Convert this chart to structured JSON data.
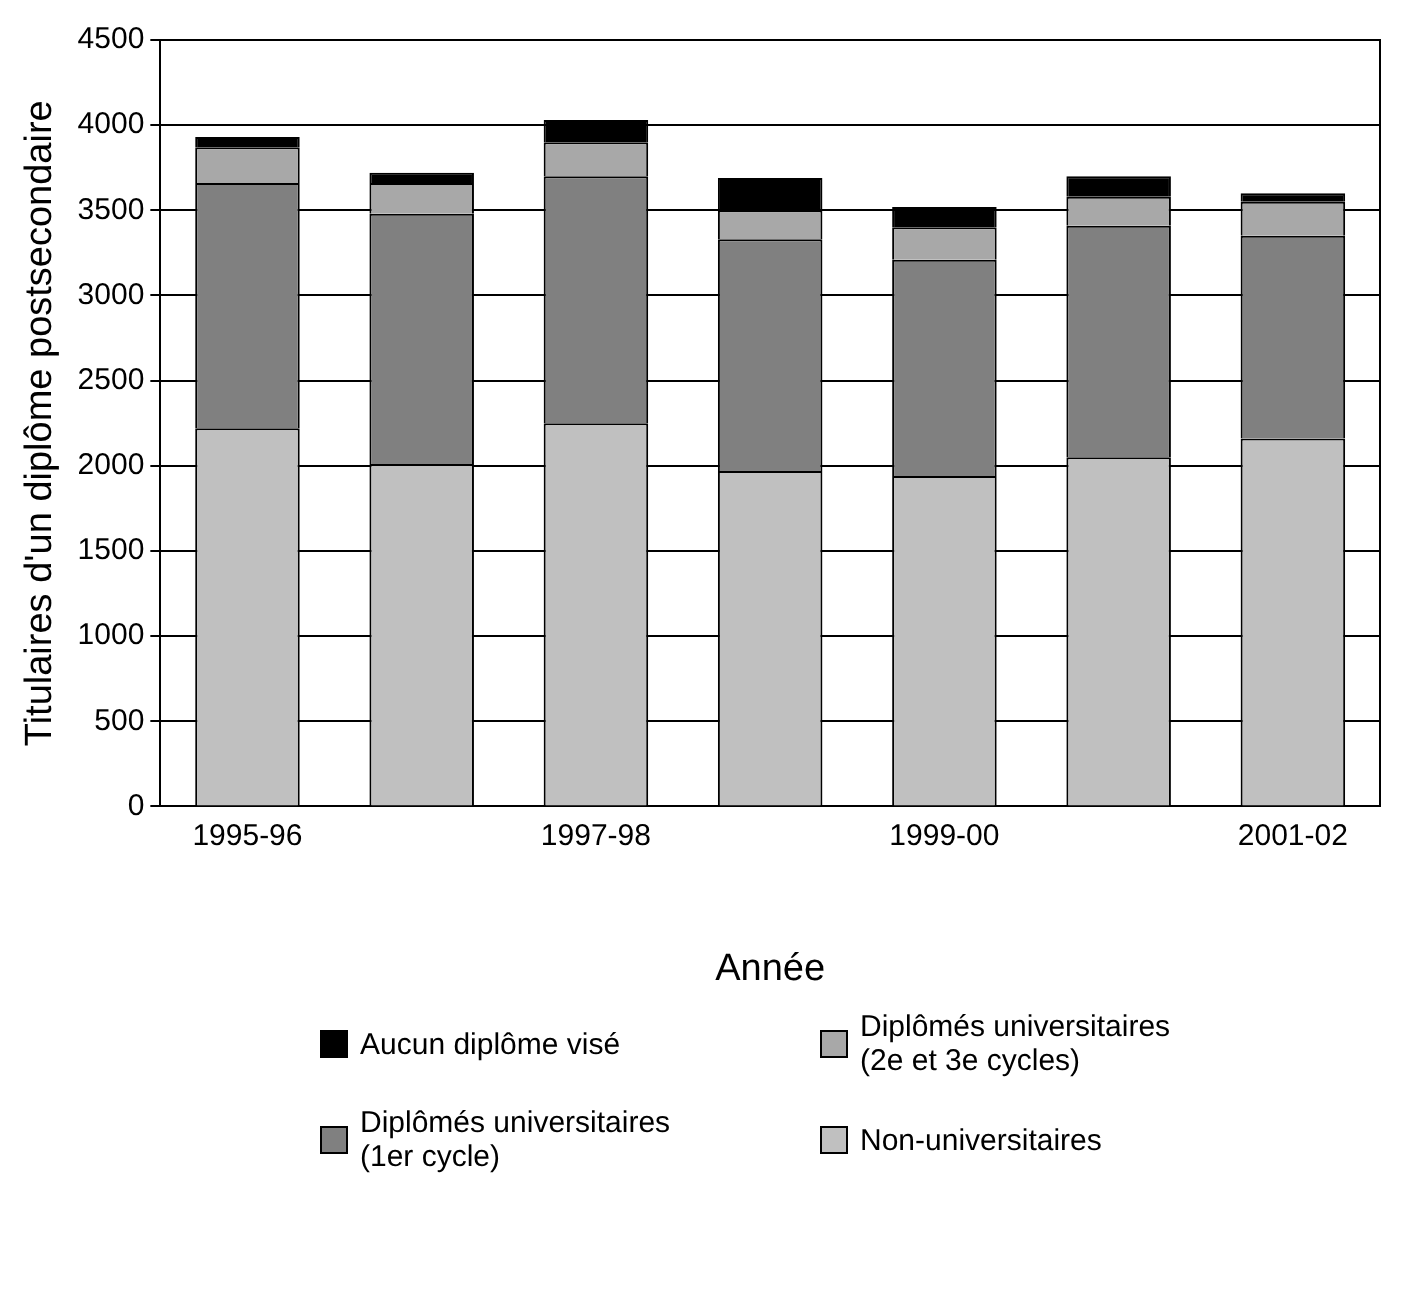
{
  "chart_data": {
    "type": "bar",
    "stacked": true,
    "xlabel": "Année",
    "ylabel": "Titulaires d'un diplôme postsecondaire",
    "categories": [
      "1995-96",
      null,
      "1997-98",
      null,
      "1999-00",
      null,
      "2001-02"
    ],
    "series": [
      {
        "name": "Non-universitaires",
        "color": "#c0c0c0",
        "values": [
          2220,
          2010,
          2250,
          1970,
          1940,
          2050,
          2160
        ]
      },
      {
        "name": "Diplômés universitaires (1er cycle)",
        "color": "#808080",
        "values": [
          1440,
          1470,
          1450,
          1360,
          1270,
          1360,
          1190
        ]
      },
      {
        "name": "Diplômés universitaires (2e et 3e cycles)",
        "color": "#a8a8a8",
        "values": [
          210,
          180,
          200,
          170,
          190,
          170,
          200
        ]
      },
      {
        "name": "Aucun diplôme visé",
        "color": "#000000",
        "values": [
          60,
          60,
          130,
          190,
          120,
          120,
          50
        ]
      }
    ],
    "ylim": [
      0,
      4500
    ],
    "yticks": [
      0,
      500,
      1000,
      1500,
      2000,
      2500,
      3000,
      3500,
      4000,
      4500
    ],
    "grid": "y",
    "legend": "bottom"
  }
}
